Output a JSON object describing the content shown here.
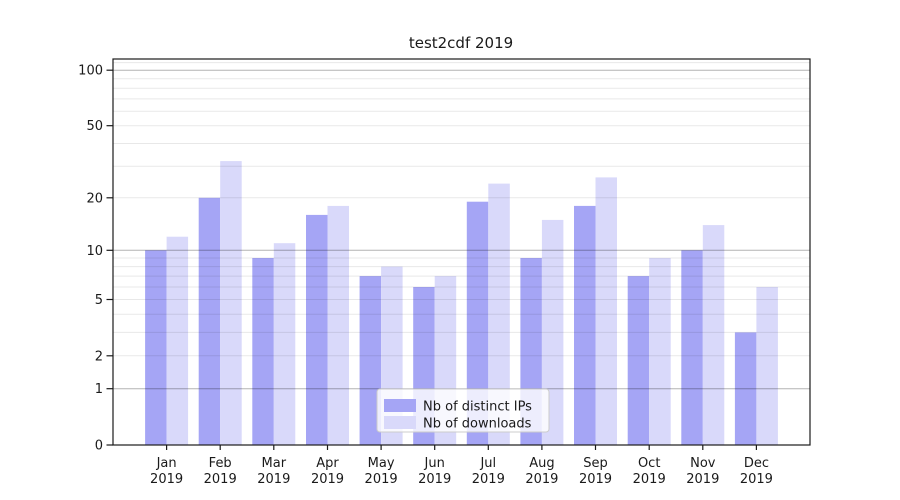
{
  "title": "test2cdf 2019",
  "colors": {
    "ips_bar": "#a5a5f5",
    "downloads_bar": "#d9d9fa",
    "major_grid": "rgba(0,0,0,0.30)",
    "minor_grid": "rgba(0,0,0,0.09)",
    "axis": "#1a1a1a",
    "legend_border": "#cccccc",
    "legend_bg": "rgba(255,255,255,0.8)"
  },
  "chart_data": {
    "type": "bar",
    "title": "test2cdf 2019",
    "categories": [
      {
        "month": "Jan",
        "year": "2019"
      },
      {
        "month": "Feb",
        "year": "2019"
      },
      {
        "month": "Mar",
        "year": "2019"
      },
      {
        "month": "Apr",
        "year": "2019"
      },
      {
        "month": "May",
        "year": "2019"
      },
      {
        "month": "Jun",
        "year": "2019"
      },
      {
        "month": "Jul",
        "year": "2019"
      },
      {
        "month": "Aug",
        "year": "2019"
      },
      {
        "month": "Sep",
        "year": "2019"
      },
      {
        "month": "Oct",
        "year": "2019"
      },
      {
        "month": "Nov",
        "year": "2019"
      },
      {
        "month": "Dec",
        "year": "2019"
      }
    ],
    "series": [
      {
        "name": "Nb of distinct IPs",
        "values": [
          10,
          20,
          9,
          16,
          7,
          6,
          19,
          9,
          18,
          7,
          10,
          3
        ],
        "color": "#a5a5f5"
      },
      {
        "name": "Nb of downloads",
        "values": [
          12,
          32,
          11,
          18,
          8,
          7,
          24,
          15,
          26,
          9,
          14,
          6
        ],
        "color": "#d9d9fa"
      }
    ],
    "yscale": "log1p",
    "ylim": [
      0,
      115
    ],
    "y_ticks": [
      0,
      1,
      2,
      5,
      10,
      20,
      50,
      100
    ],
    "gridlines": {
      "major": [
        1,
        10,
        100
      ],
      "minor": [
        2,
        3,
        4,
        5,
        6,
        7,
        8,
        9,
        20,
        30,
        40,
        50,
        60,
        70,
        80,
        90,
        110
      ]
    },
    "grid": "on",
    "legend_position": "lower center"
  }
}
